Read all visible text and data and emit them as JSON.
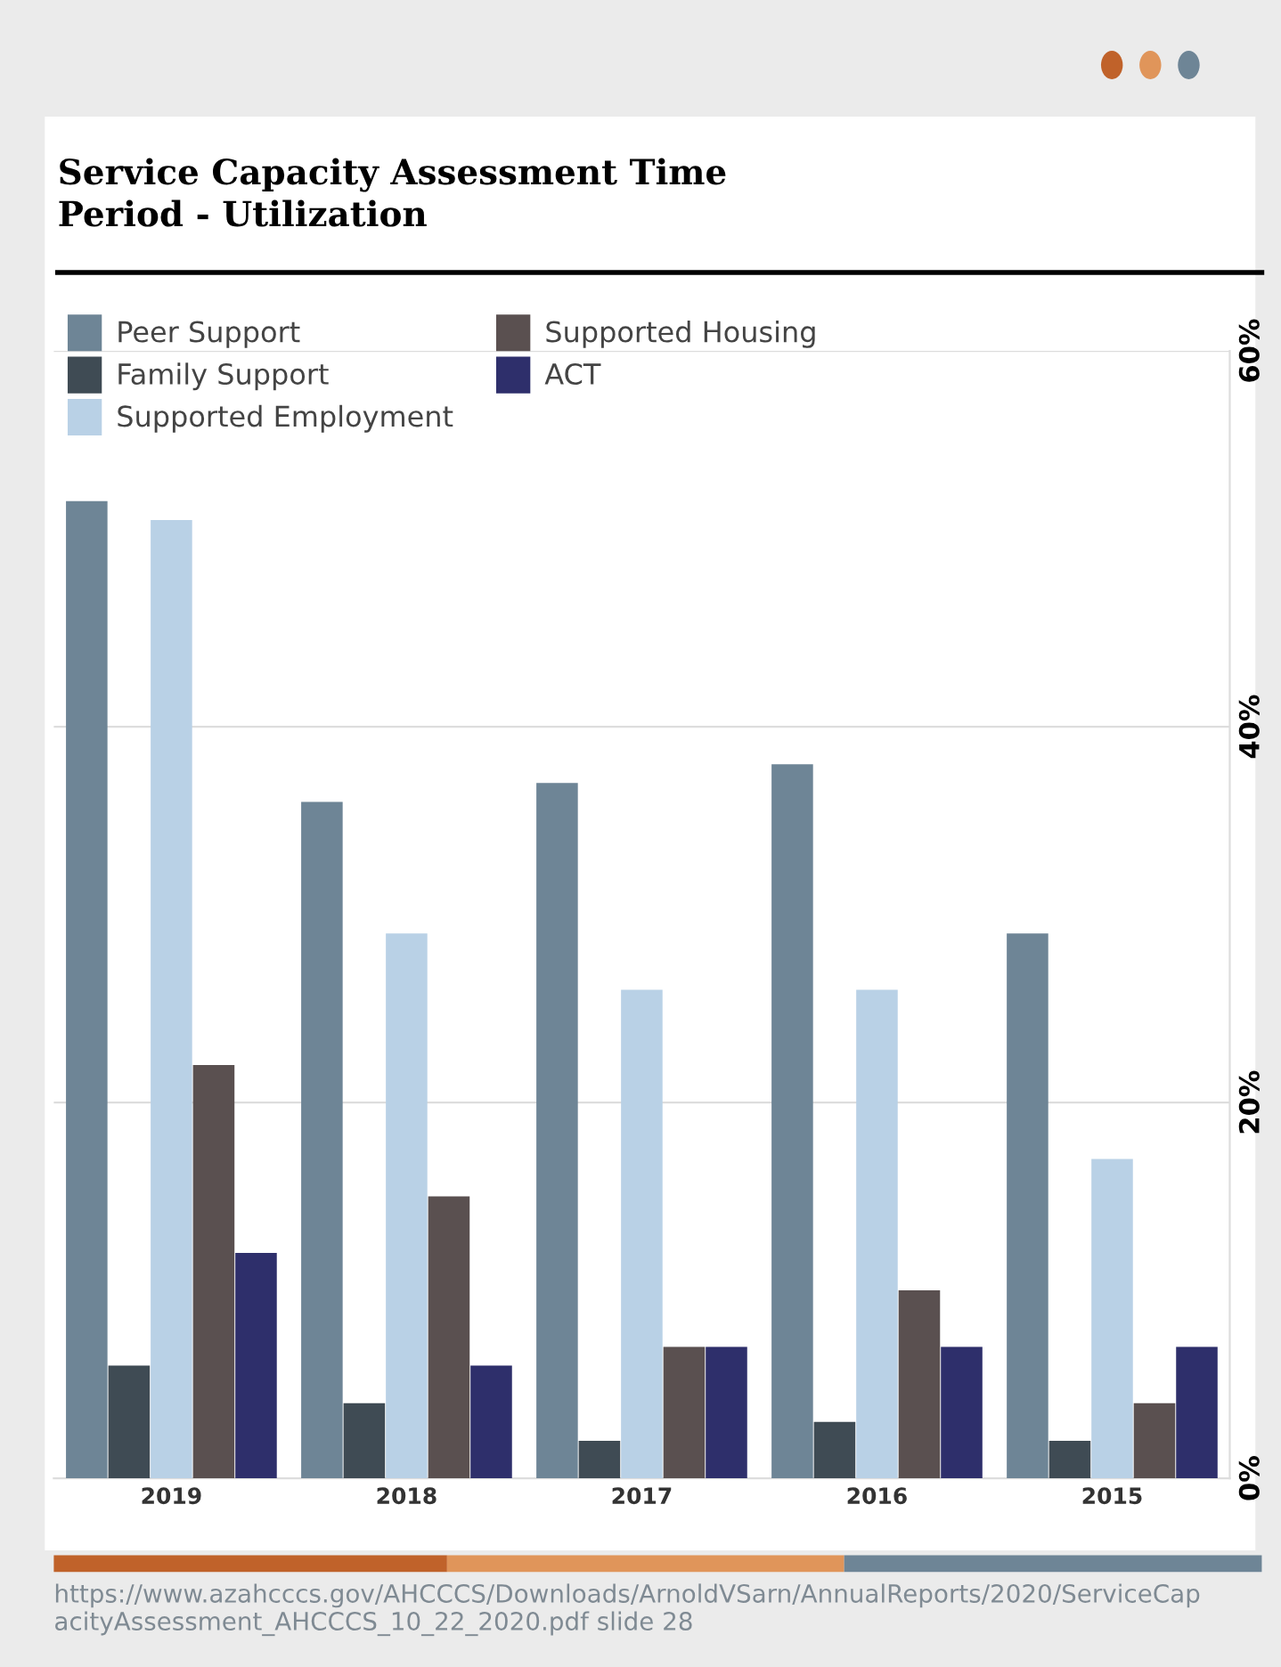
{
  "chart_data": {
    "type": "bar",
    "title": "Service Capacity Assessment Time Period - Utilization",
    "categories": [
      "2019",
      "2018",
      "2017",
      "2016",
      "2015"
    ],
    "series": [
      {
        "name": "Peer Support",
        "color": "#6e8596",
        "values": [
          52,
          36,
          37,
          38,
          29
        ]
      },
      {
        "name": "Family Support",
        "color": "#3f4b54",
        "values": [
          6,
          4,
          2,
          3,
          2
        ]
      },
      {
        "name": "Supported Employment",
        "color": "#b9d1e6",
        "values": [
          51,
          29,
          26,
          26,
          17
        ]
      },
      {
        "name": "Supported Housing",
        "color": "#5a5050",
        "values": [
          22,
          15,
          7,
          10,
          4
        ]
      },
      {
        "name": "ACT",
        "color": "#2e2f6b",
        "values": [
          12,
          6,
          7,
          7,
          7
        ]
      }
    ],
    "ylim": [
      0,
      60
    ],
    "yticks": [
      {
        "value": 0,
        "label": "0%"
      },
      {
        "value": 20,
        "label": "20%"
      },
      {
        "value": 40,
        "label": "40%"
      },
      {
        "value": 60,
        "label": "60%"
      }
    ],
    "grid": "y",
    "legend": "top left",
    "annotations": [
      "https://www.azahcccs.gov/AHCCCS/Downloads/ArnoldVSarn/AnnualReports/2020/ServiceCapacityAssessment_AHCCCS_10_22_2020.pdf slide 28"
    ]
  }
}
